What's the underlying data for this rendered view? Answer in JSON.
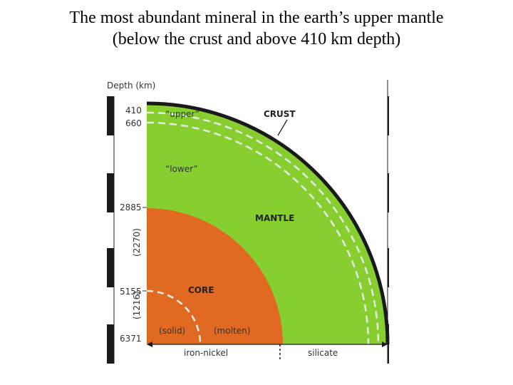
{
  "title": {
    "line1": "The most abundant mineral in the earth’s upper mantle",
    "line2": "(below the crust and above 410 km depth)"
  },
  "diagram": {
    "depth_header": "Depth (km)",
    "depths": [
      "410",
      "660",
      "2885",
      "5155",
      "6371"
    ],
    "thickness_outer_core": "(2270)",
    "thickness_inner_core": "(1216)",
    "labels": {
      "upper": "“upper”",
      "lower": "“lower”",
      "crust": "CRUST",
      "mantle": "MANTLE",
      "core": "CORE",
      "solid": "(solid)",
      "molten": "(molten)",
      "iron_nickel": "iron-nickel",
      "silicate": "silicate"
    },
    "colors": {
      "mantle": "#86cf2f",
      "core": "#e06a21",
      "crust": "#1a1a1a",
      "dash": "#e8e8e8",
      "ruler": "#1a1a1a"
    }
  }
}
